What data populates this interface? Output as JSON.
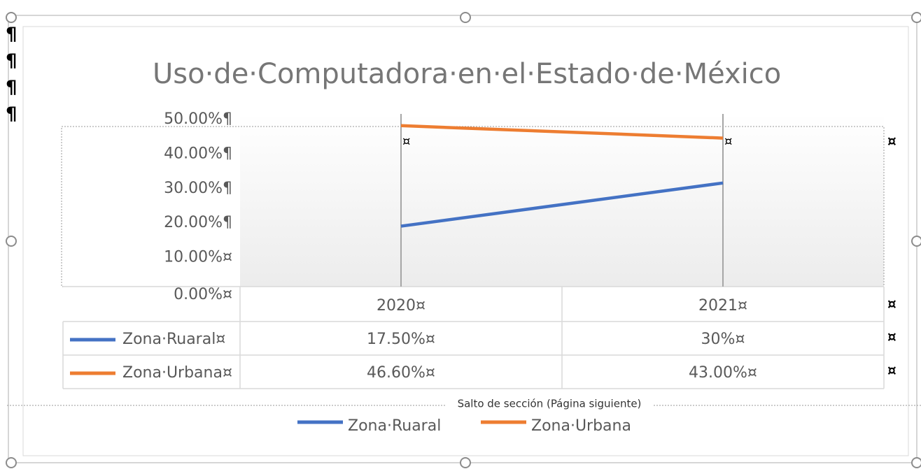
{
  "chart_data": {
    "type": "line",
    "title": "Uso·de·Computadora·en·el·Estado·de·México",
    "categories": [
      "2020¤",
      "2021¤"
    ],
    "series": [
      {
        "name": "Zona·Ruaral",
        "color": "#4472c4",
        "values": [
          17.5,
          30
        ],
        "value_labels": [
          "17.50%¤",
          "30%¤"
        ]
      },
      {
        "name": "Zona·Urbana",
        "color": "#ed7d31",
        "values": [
          46.6,
          43.0
        ],
        "value_labels": [
          "46.60%¤",
          "43.00%¤"
        ]
      }
    ],
    "data_table": {
      "row_labels": [
        "Zona·Ruaral¤",
        "Zona·Urbana¤"
      ]
    },
    "ylim": [
      0,
      50
    ],
    "yticks": [
      {
        "value": 0,
        "label": "0.00%¤"
      },
      {
        "value": 10,
        "label": "10.00%¤"
      },
      {
        "value": 20,
        "label": "20.00%¶"
      },
      {
        "value": 30,
        "label": "30.00%¶"
      },
      {
        "value": 40,
        "label": "40.00%¶"
      },
      {
        "value": 50,
        "label": "50.00%¶"
      }
    ],
    "legend": "bottom"
  },
  "page": {
    "section_break": "Salto de sección (Página siguiente)",
    "pilcrows": [
      "¶",
      "¶",
      "¶",
      "¶"
    ],
    "row_end_marks": [
      "¤",
      "¤",
      "¤",
      "¤"
    ],
    "plot_marks": [
      "¤",
      "¤"
    ]
  }
}
